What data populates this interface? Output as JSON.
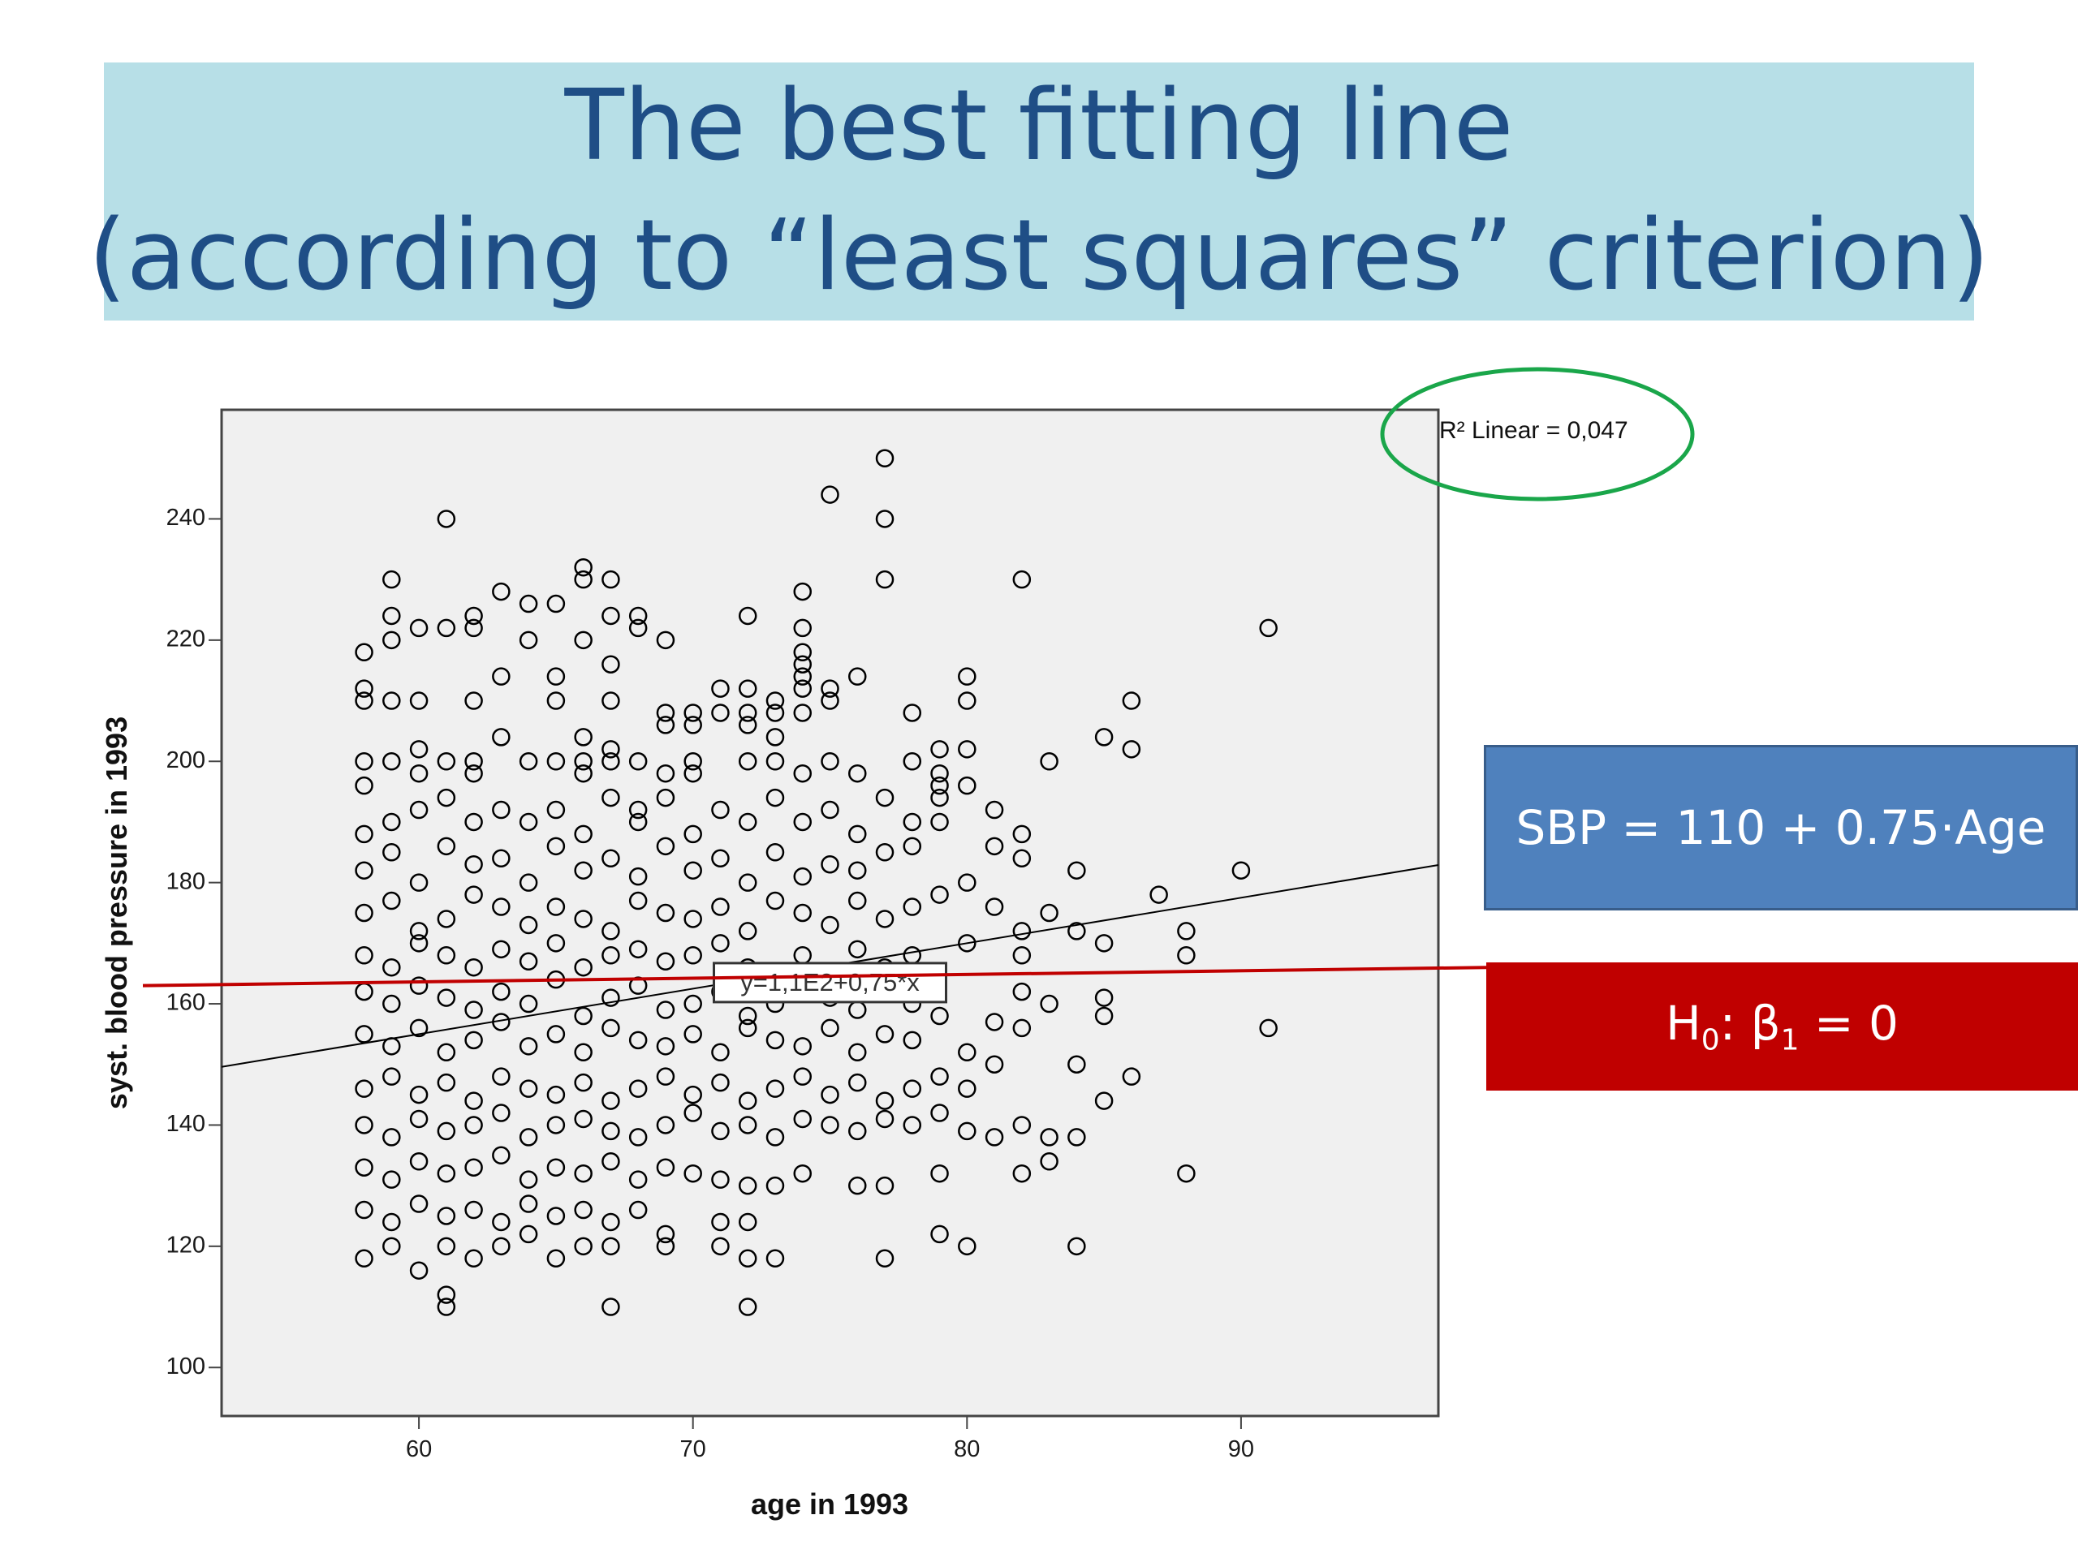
{
  "slide": {
    "title_line1": "The best fitting line",
    "title_line2": "(according to “least squares” criterion)",
    "model_equation": "SBP = 110 + 0.75·Age",
    "hypothesis": {
      "H": "H",
      "h_sub": "0",
      "mid": ": β",
      "b_sub": "1",
      "rest": " = 0"
    },
    "colors": {
      "title_bg": "#b7dfe7",
      "title_text": "#1f4e86",
      "equation_box": "#4f81bd",
      "hypothesis_box": "#c00000",
      "null_line": "#c00000",
      "r2_circle": "#1aa64a",
      "plot_bg": "#f0f0f0",
      "fit_line": "#000000"
    }
  },
  "chart_data": {
    "type": "scatter",
    "xlabel": "age in 1993",
    "ylabel": "syst. blood pressure in 1993",
    "xlim": [
      52.8,
      97.2
    ],
    "ylim": [
      92,
      258
    ],
    "xticks": [
      60,
      70,
      80,
      90
    ],
    "yticks": [
      100,
      120,
      140,
      160,
      180,
      200,
      220,
      240
    ],
    "grid": false,
    "fit_line": {
      "intercept": 110,
      "slope": 0.75,
      "label": "y=1,1E2+0,75*x",
      "label_at": {
        "x": 75,
        "y": 163.5
      }
    },
    "r2_text": "R² Linear = 0,047",
    "null_line": {
      "y_left": 163,
      "y_right": 166
    },
    "points": [
      [
        61,
        240
      ],
      [
        75,
        244
      ],
      [
        77,
        250
      ],
      [
        77,
        240
      ],
      [
        59,
        230
      ],
      [
        63,
        228
      ],
      [
        66,
        232
      ],
      [
        66,
        230
      ],
      [
        67,
        230
      ],
      [
        74,
        228
      ],
      [
        77,
        230
      ],
      [
        82,
        230
      ],
      [
        64,
        226
      ],
      [
        65,
        226
      ],
      [
        67,
        224
      ],
      [
        68,
        224
      ],
      [
        72,
        224
      ],
      [
        59,
        224
      ],
      [
        62,
        222
      ],
      [
        62,
        224
      ],
      [
        60,
        222
      ],
      [
        74,
        222
      ],
      [
        91,
        222
      ],
      [
        58,
        218
      ],
      [
        59,
        220
      ],
      [
        61,
        222
      ],
      [
        64,
        220
      ],
      [
        66,
        220
      ],
      [
        68,
        222
      ],
      [
        69,
        220
      ],
      [
        74,
        218
      ],
      [
        74,
        216
      ],
      [
        67,
        216
      ],
      [
        63,
        214
      ],
      [
        65,
        214
      ],
      [
        74,
        214
      ],
      [
        74,
        212
      ],
      [
        76,
        214
      ],
      [
        80,
        214
      ],
      [
        71,
        212
      ],
      [
        72,
        212
      ],
      [
        75,
        212
      ],
      [
        58,
        212
      ],
      [
        58,
        210
      ],
      [
        59,
        210
      ],
      [
        60,
        210
      ],
      [
        62,
        210
      ],
      [
        65,
        210
      ],
      [
        67,
        210
      ],
      [
        73,
        210
      ],
      [
        75,
        210
      ],
      [
        80,
        210
      ],
      [
        86,
        210
      ],
      [
        69,
        208
      ],
      [
        70,
        208
      ],
      [
        71,
        208
      ],
      [
        72,
        208
      ],
      [
        73,
        208
      ],
      [
        74,
        208
      ],
      [
        78,
        208
      ],
      [
        69,
        206
      ],
      [
        70,
        206
      ],
      [
        72,
        206
      ],
      [
        63,
        204
      ],
      [
        66,
        204
      ],
      [
        73,
        204
      ],
      [
        85,
        204
      ],
      [
        86,
        202
      ],
      [
        60,
        202
      ],
      [
        67,
        202
      ],
      [
        79,
        202
      ],
      [
        80,
        202
      ],
      [
        58,
        200
      ],
      [
        59,
        200
      ],
      [
        61,
        200
      ],
      [
        62,
        200
      ],
      [
        64,
        200
      ],
      [
        65,
        200
      ],
      [
        66,
        200
      ],
      [
        67,
        200
      ],
      [
        68,
        200
      ],
      [
        70,
        200
      ],
      [
        72,
        200
      ],
      [
        73,
        200
      ],
      [
        75,
        200
      ],
      [
        78,
        200
      ],
      [
        83,
        200
      ],
      [
        58,
        196
      ],
      [
        60,
        198
      ],
      [
        62,
        198
      ],
      [
        66,
        198
      ],
      [
        69,
        198
      ],
      [
        70,
        198
      ],
      [
        74,
        198
      ],
      [
        76,
        198
      ],
      [
        79,
        196
      ],
      [
        79,
        198
      ],
      [
        80,
        196
      ],
      [
        60,
        192
      ],
      [
        61,
        194
      ],
      [
        63,
        192
      ],
      [
        65,
        192
      ],
      [
        67,
        194
      ],
      [
        68,
        192
      ],
      [
        69,
        194
      ],
      [
        71,
        192
      ],
      [
        73,
        194
      ],
      [
        75,
        192
      ],
      [
        77,
        194
      ],
      [
        79,
        194
      ],
      [
        81,
        192
      ],
      [
        58,
        188
      ],
      [
        59,
        190
      ],
      [
        62,
        190
      ],
      [
        64,
        190
      ],
      [
        66,
        188
      ],
      [
        68,
        190
      ],
      [
        70,
        188
      ],
      [
        72,
        190
      ],
      [
        74,
        190
      ],
      [
        76,
        188
      ],
      [
        78,
        190
      ],
      [
        79,
        190
      ],
      [
        82,
        188
      ],
      [
        58,
        182
      ],
      [
        59,
        185
      ],
      [
        60,
        180
      ],
      [
        61,
        186
      ],
      [
        62,
        183
      ],
      [
        63,
        184
      ],
      [
        64,
        180
      ],
      [
        65,
        186
      ],
      [
        66,
        182
      ],
      [
        67,
        184
      ],
      [
        68,
        181
      ],
      [
        69,
        186
      ],
      [
        70,
        182
      ],
      [
        71,
        184
      ],
      [
        72,
        180
      ],
      [
        73,
        185
      ],
      [
        74,
        181
      ],
      [
        75,
        183
      ],
      [
        76,
        182
      ],
      [
        77,
        185
      ],
      [
        78,
        186
      ],
      [
        80,
        180
      ],
      [
        81,
        186
      ],
      [
        82,
        184
      ],
      [
        84,
        182
      ],
      [
        87,
        178
      ],
      [
        90,
        182
      ],
      [
        58,
        175
      ],
      [
        59,
        177
      ],
      [
        60,
        172
      ],
      [
        61,
        174
      ],
      [
        62,
        178
      ],
      [
        63,
        176
      ],
      [
        64,
        173
      ],
      [
        65,
        176
      ],
      [
        66,
        174
      ],
      [
        67,
        172
      ],
      [
        68,
        177
      ],
      [
        69,
        175
      ],
      [
        70,
        174
      ],
      [
        71,
        176
      ],
      [
        72,
        172
      ],
      [
        73,
        177
      ],
      [
        74,
        175
      ],
      [
        75,
        173
      ],
      [
        76,
        177
      ],
      [
        77,
        174
      ],
      [
        78,
        176
      ],
      [
        79,
        178
      ],
      [
        81,
        176
      ],
      [
        82,
        172
      ],
      [
        83,
        175
      ],
      [
        84,
        172
      ],
      [
        88,
        172
      ],
      [
        85,
        170
      ],
      [
        88,
        168
      ],
      [
        58,
        168
      ],
      [
        59,
        166
      ],
      [
        60,
        170
      ],
      [
        61,
        168
      ],
      [
        62,
        166
      ],
      [
        63,
        169
      ],
      [
        64,
        167
      ],
      [
        65,
        170
      ],
      [
        66,
        166
      ],
      [
        67,
        168
      ],
      [
        68,
        169
      ],
      [
        69,
        167
      ],
      [
        70,
        168
      ],
      [
        71,
        170
      ],
      [
        72,
        166
      ],
      [
        74,
        168
      ],
      [
        76,
        169
      ],
      [
        77,
        166
      ],
      [
        78,
        168
      ],
      [
        80,
        170
      ],
      [
        82,
        168
      ],
      [
        58,
        162
      ],
      [
        59,
        160
      ],
      [
        60,
        163
      ],
      [
        61,
        161
      ],
      [
        62,
        159
      ],
      [
        63,
        162
      ],
      [
        64,
        160
      ],
      [
        65,
        164
      ],
      [
        66,
        158
      ],
      [
        67,
        161
      ],
      [
        68,
        163
      ],
      [
        69,
        159
      ],
      [
        70,
        160
      ],
      [
        71,
        162
      ],
      [
        72,
        158
      ],
      [
        73,
        160
      ],
      [
        74,
        163
      ],
      [
        75,
        161
      ],
      [
        76,
        159
      ],
      [
        77,
        162
      ],
      [
        78,
        160
      ],
      [
        79,
        158
      ],
      [
        81,
        157
      ],
      [
        82,
        162
      ],
      [
        83,
        160
      ],
      [
        85,
        161
      ],
      [
        85,
        158
      ],
      [
        91,
        156
      ],
      [
        58,
        155
      ],
      [
        59,
        153
      ],
      [
        60,
        156
      ],
      [
        61,
        152
      ],
      [
        62,
        154
      ],
      [
        63,
        157
      ],
      [
        64,
        153
      ],
      [
        65,
        155
      ],
      [
        66,
        152
      ],
      [
        67,
        156
      ],
      [
        68,
        154
      ],
      [
        69,
        153
      ],
      [
        70,
        155
      ],
      [
        71,
        152
      ],
      [
        72,
        156
      ],
      [
        73,
        154
      ],
      [
        74,
        153
      ],
      [
        75,
        156
      ],
      [
        76,
        152
      ],
      [
        77,
        155
      ],
      [
        78,
        154
      ],
      [
        80,
        152
      ],
      [
        81,
        150
      ],
      [
        82,
        156
      ],
      [
        84,
        150
      ],
      [
        86,
        148
      ],
      [
        58,
        146
      ],
      [
        59,
        148
      ],
      [
        60,
        145
      ],
      [
        61,
        147
      ],
      [
        62,
        144
      ],
      [
        63,
        148
      ],
      [
        64,
        146
      ],
      [
        65,
        145
      ],
      [
        66,
        147
      ],
      [
        67,
        144
      ],
      [
        68,
        146
      ],
      [
        69,
        148
      ],
      [
        70,
        145
      ],
      [
        71,
        147
      ],
      [
        72,
        144
      ],
      [
        73,
        146
      ],
      [
        74,
        148
      ],
      [
        75,
        145
      ],
      [
        76,
        147
      ],
      [
        77,
        144
      ],
      [
        78,
        146
      ],
      [
        79,
        148
      ],
      [
        80,
        146
      ],
      [
        85,
        144
      ],
      [
        58,
        140
      ],
      [
        59,
        138
      ],
      [
        60,
        141
      ],
      [
        61,
        139
      ],
      [
        62,
        140
      ],
      [
        63,
        142
      ],
      [
        64,
        138
      ],
      [
        65,
        140
      ],
      [
        66,
        141
      ],
      [
        67,
        139
      ],
      [
        68,
        138
      ],
      [
        69,
        140
      ],
      [
        70,
        142
      ],
      [
        71,
        139
      ],
      [
        72,
        140
      ],
      [
        73,
        138
      ],
      [
        74,
        141
      ],
      [
        75,
        140
      ],
      [
        76,
        139
      ],
      [
        77,
        141
      ],
      [
        78,
        140
      ],
      [
        79,
        142
      ],
      [
        80,
        139
      ],
      [
        81,
        138
      ],
      [
        82,
        140
      ],
      [
        83,
        138
      ],
      [
        84,
        138
      ],
      [
        58,
        133
      ],
      [
        59,
        131
      ],
      [
        60,
        134
      ],
      [
        61,
        132
      ],
      [
        62,
        133
      ],
      [
        63,
        135
      ],
      [
        64,
        131
      ],
      [
        65,
        133
      ],
      [
        66,
        132
      ],
      [
        67,
        134
      ],
      [
        68,
        131
      ],
      [
        69,
        133
      ],
      [
        70,
        132
      ],
      [
        71,
        131
      ],
      [
        72,
        130
      ],
      [
        73,
        130
      ],
      [
        74,
        132
      ],
      [
        76,
        130
      ],
      [
        77,
        130
      ],
      [
        79,
        132
      ],
      [
        82,
        132
      ],
      [
        83,
        134
      ],
      [
        88,
        132
      ],
      [
        58,
        126
      ],
      [
        59,
        124
      ],
      [
        60,
        127
      ],
      [
        61,
        125
      ],
      [
        62,
        126
      ],
      [
        63,
        124
      ],
      [
        64,
        127
      ],
      [
        65,
        125
      ],
      [
        66,
        126
      ],
      [
        67,
        124
      ],
      [
        68,
        126
      ],
      [
        69,
        122
      ],
      [
        71,
        124
      ],
      [
        72,
        124
      ],
      [
        58,
        118
      ],
      [
        59,
        120
      ],
      [
        60,
        116
      ],
      [
        61,
        120
      ],
      [
        62,
        118
      ],
      [
        63,
        120
      ],
      [
        64,
        122
      ],
      [
        65,
        118
      ],
      [
        66,
        120
      ],
      [
        67,
        120
      ],
      [
        69,
        120
      ],
      [
        71,
        120
      ],
      [
        72,
        118
      ],
      [
        73,
        118
      ],
      [
        77,
        118
      ],
      [
        79,
        122
      ],
      [
        80,
        120
      ],
      [
        84,
        120
      ],
      [
        61,
        112
      ],
      [
        61,
        110
      ],
      [
        67,
        110
      ],
      [
        72,
        110
      ]
    ]
  }
}
